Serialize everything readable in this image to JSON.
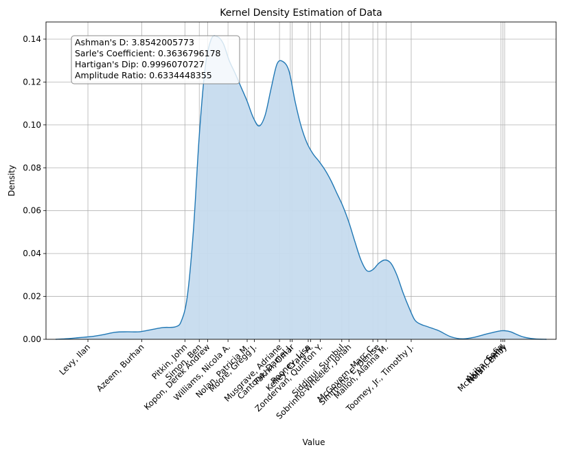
{
  "chart_data": {
    "type": "area",
    "title": "Kernel Density Estimation of Data",
    "xlabel": "Value",
    "ylabel": "Density",
    "ylim": [
      0,
      0.148
    ],
    "xlim": [
      -0.8,
      41.8
    ],
    "yticks": [
      0.0,
      0.02,
      0.04,
      0.06,
      0.08,
      0.1,
      0.12,
      0.14
    ],
    "ytick_labels": [
      "0.00",
      "0.02",
      "0.04",
      "0.06",
      "0.08",
      "0.10",
      "0.12",
      "0.14"
    ],
    "grid": true,
    "color": "#1f77b4",
    "fill_color": "#c6dbee",
    "stats": [
      "Ashman's D: 3.8542005773",
      "Sarle's Coefficient: 0.3636796178",
      "Hartigan's Dip: 0.9996070727",
      "Amplitude Ratio: 0.6334448355"
    ],
    "tick_labels": [
      {
        "x": 2.7,
        "label": "Levy, Ilan"
      },
      {
        "x": 7.2,
        "label": "Azeem, Burhan"
      },
      {
        "x": 10.8,
        "label": "Pitkin, John"
      },
      {
        "x": 12.0,
        "label": "Simon, Ben"
      },
      {
        "x": 12.7,
        "label": "Kopon, Derek Andrew"
      },
      {
        "x": 14.4,
        "label": "Williams, Nicola A."
      },
      {
        "x": 16.0,
        "label": "Nolan, Patricia M."
      },
      {
        "x": 16.6,
        "label": "Moore, Gregg J."
      },
      {
        "x": 18.7,
        "label": "Musgrave, Adriane"
      },
      {
        "x": 19.6,
        "label": "Cantone, Daniel J."
      },
      {
        "x": 19.75,
        "label": "Fakhri, Omar"
      },
      {
        "x": 21.1,
        "label": "Rooney, Lisa"
      },
      {
        "x": 21.3,
        "label": "Kelley, Craig A."
      },
      {
        "x": 22.1,
        "label": "Zondervan, Quinton Y."
      },
      {
        "x": 23.9,
        "label": "Siddiqui, Sumbul"
      },
      {
        "x": 24.5,
        "label": "Sobrinho-Wheeler, Jonah"
      },
      {
        "x": 26.5,
        "label": "McGovern, Marc C."
      },
      {
        "x": 26.9,
        "label": "Simmons, E. Denise"
      },
      {
        "x": 27.6,
        "label": "Mallon, Alanna M."
      },
      {
        "x": 29.7,
        "label": "Toomey, Jr., Timothy J."
      },
      {
        "x": 37.2,
        "label": "Akiba, Sofia"
      },
      {
        "x": 37.35,
        "label": "McNary, Cheryl"
      },
      {
        "x": 37.5,
        "label": "Nolan, Emily"
      }
    ],
    "x": [
      0,
      1,
      2,
      3,
      4,
      5,
      6,
      7,
      8,
      9,
      10,
      10.5,
      11,
      11.5,
      12,
      12.5,
      13,
      13.5,
      14,
      14.5,
      15,
      15.5,
      16,
      16.5,
      17,
      17.5,
      18,
      18.5,
      19,
      19.5,
      20,
      20.5,
      21,
      21.5,
      22,
      22.5,
      23,
      23.5,
      24,
      24.5,
      25,
      25.5,
      26,
      26.5,
      27,
      27.5,
      28,
      28.5,
      29,
      29.5,
      30,
      30.5,
      31,
      32,
      33,
      34,
      35,
      36,
      37,
      37.5,
      38,
      39,
      40,
      41
    ],
    "y": [
      0.0,
      0.0003,
      0.0008,
      0.0013,
      0.0022,
      0.0033,
      0.0035,
      0.0035,
      0.0045,
      0.0055,
      0.0058,
      0.0085,
      0.02,
      0.05,
      0.095,
      0.127,
      0.14,
      0.1412,
      0.138,
      0.13,
      0.124,
      0.1175,
      0.111,
      0.1035,
      0.0995,
      0.1045,
      0.117,
      0.1285,
      0.1295,
      0.125,
      0.111,
      0.0995,
      0.0915,
      0.0865,
      0.083,
      0.079,
      0.074,
      0.068,
      0.062,
      0.0545,
      0.0455,
      0.037,
      0.032,
      0.0325,
      0.0355,
      0.037,
      0.0355,
      0.03,
      0.022,
      0.015,
      0.009,
      0.007,
      0.006,
      0.004,
      0.0012,
      0.0002,
      0.001,
      0.0025,
      0.0038,
      0.004,
      0.0035,
      0.0012,
      0.0002,
      0.0
    ]
  }
}
